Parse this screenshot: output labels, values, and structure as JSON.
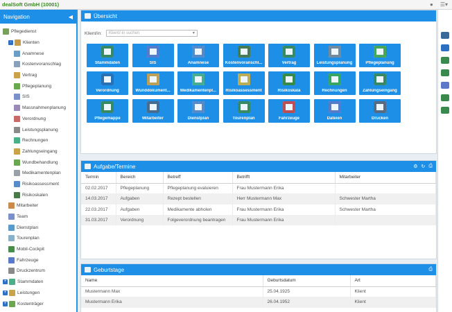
{
  "app": {
    "title": "dealSoft GmbH (10001)",
    "colors": {
      "accent": "#1d8fe6",
      "brand": "#3a8a1e"
    },
    "icons": [
      "user-icon",
      "menu-icon",
      "chevron-down-icon"
    ]
  },
  "sidebar": {
    "title": "Navigation",
    "collapse_icon": "chevron-left-icon",
    "items": [
      {
        "label": "Pflegedienst",
        "level": 0,
        "expander": "",
        "icon": "group-icon",
        "color": "#7a9f5a"
      },
      {
        "label": "Klienten",
        "level": 1,
        "expander": "-",
        "icon": "people-icon",
        "color": "#c79a4a"
      },
      {
        "label": "Anamnese",
        "level": 2,
        "expander": "",
        "icon": "notes-icon",
        "color": "#6a9ec9"
      },
      {
        "label": "Kostenvoranschlag",
        "level": 2,
        "expander": "",
        "icon": "document-icon",
        "color": "#8aa0b8"
      },
      {
        "label": "Vertrag",
        "level": 2,
        "expander": "",
        "icon": "contract-icon",
        "color": "#c9a24a"
      },
      {
        "label": "Pflegeplanung",
        "level": 2,
        "expander": "",
        "icon": "plan-icon",
        "color": "#6aa84f"
      },
      {
        "label": "SIS",
        "level": 2,
        "expander": "",
        "icon": "sis-icon",
        "color": "#7b8fc9"
      },
      {
        "label": "Massnahmenplanung",
        "level": 2,
        "expander": "",
        "icon": "measures-icon",
        "color": "#9b8ab8"
      },
      {
        "label": "Verordnung",
        "level": 2,
        "expander": "",
        "icon": "prescription-icon",
        "color": "#c96a6a"
      },
      {
        "label": "Leistungsplanung",
        "level": 2,
        "expander": "",
        "icon": "service-icon",
        "color": "#8a8a8a"
      },
      {
        "label": "Rechnungen",
        "level": 2,
        "expander": "",
        "icon": "invoice-icon",
        "color": "#4ab08a"
      },
      {
        "label": "Zahlungseingang",
        "level": 2,
        "expander": "",
        "icon": "payment-icon",
        "color": "#c9a24a"
      },
      {
        "label": "Wundbehandlung",
        "level": 2,
        "expander": "",
        "icon": "wound-icon",
        "color": "#6aa84f"
      },
      {
        "label": "Medikamentenplan",
        "level": 2,
        "expander": "",
        "icon": "medication-icon",
        "color": "#9aa0a8"
      },
      {
        "label": "Risikoassessment",
        "level": 2,
        "expander": "",
        "icon": "risk-icon",
        "color": "#5a8ac9"
      },
      {
        "label": "Risikoskalen",
        "level": 2,
        "expander": "",
        "icon": "scale-icon",
        "color": "#4a7a4a"
      },
      {
        "label": "Mitarbeiter",
        "level": 1,
        "expander": "",
        "icon": "staff-icon",
        "color": "#c98a4a"
      },
      {
        "label": "Team",
        "level": 1,
        "expander": "",
        "icon": "team-icon",
        "color": "#7b8fc9"
      },
      {
        "label": "Dienstplan",
        "level": 1,
        "expander": "",
        "icon": "schedule-icon",
        "color": "#5a9ac9"
      },
      {
        "label": "Tourenplan",
        "level": 1,
        "expander": "",
        "icon": "route-icon",
        "color": "#8ab0c9"
      },
      {
        "label": "Mobil-Cockpit",
        "level": 1,
        "expander": "",
        "icon": "mobile-icon",
        "color": "#4a8a4a"
      },
      {
        "label": "Fahrzeuge",
        "level": 1,
        "expander": "",
        "icon": "car-icon",
        "color": "#5a7ac9"
      },
      {
        "label": "Druckzentrum",
        "level": 1,
        "expander": "",
        "icon": "printer-icon",
        "color": "#8a8a8a"
      },
      {
        "label": "Stammdaten",
        "level": 0,
        "expander": "+",
        "icon": "masterdata-icon",
        "color": "#4ab08a"
      },
      {
        "label": "Leistungen",
        "level": 0,
        "expander": "+",
        "icon": "services-icon",
        "color": "#c9a24a"
      },
      {
        "label": "Kostenträger",
        "level": 0,
        "expander": "+",
        "icon": "payer-icon",
        "color": "#6aa84f"
      }
    ]
  },
  "overview": {
    "title": "Übersicht",
    "client_label": "Klient/in:",
    "client_placeholder": "Klient/-in suchen",
    "tiles": [
      {
        "label": "Stammdaten",
        "icon": "id-card-icon",
        "color": "#3a8a5a"
      },
      {
        "label": "SIS",
        "icon": "sis-document-icon",
        "color": "#5a7ac9"
      },
      {
        "label": "Anamnese",
        "icon": "anamnesis-icon",
        "color": "#5a8ac9"
      },
      {
        "label": "Kostenvoranschl...",
        "icon": "calculator-icon",
        "color": "#4a7a4a"
      },
      {
        "label": "Vertrag",
        "icon": "contract-pen-icon",
        "color": "#3a8a5a"
      },
      {
        "label": "Leistungsplanung",
        "icon": "checklist-icon",
        "color": "#7a8a9a"
      },
      {
        "label": "Pflegeplanung",
        "icon": "care-plan-icon",
        "color": "#4aa84f"
      },
      {
        "label": "Verordnung",
        "icon": "stethoscope-icon",
        "color": "#2a6fb0"
      },
      {
        "label": "Wunddokument...",
        "icon": "bandage-icon",
        "color": "#c9a24a"
      },
      {
        "label": "Medikamentenpl...",
        "icon": "pills-icon",
        "color": "#4ab08a"
      },
      {
        "label": "Risikoassessment",
        "icon": "warning-icon",
        "color": "#c9b04a"
      },
      {
        "label": "Risikoskala",
        "icon": "risk-scale-icon",
        "color": "#3a8a3a"
      },
      {
        "label": "Rechnungen",
        "icon": "euro-invoice-icon",
        "color": "#3aa85a"
      },
      {
        "label": "Zahlungseingang",
        "icon": "euro-coins-icon",
        "color": "#3a8a5a"
      },
      {
        "label": "Pflegemappe",
        "icon": "folder-icon",
        "color": "#3a8a5a"
      },
      {
        "label": "Mitarbeiter",
        "icon": "nurse-icon",
        "color": "#4a6a8a"
      },
      {
        "label": "Dienstplan",
        "icon": "calendar-icon",
        "color": "#5a8ac9"
      },
      {
        "label": "Tourenplan",
        "icon": "tour-map-icon",
        "color": "#3a8a5a"
      },
      {
        "label": "Fahrzeuge",
        "icon": "vehicle-icon",
        "color": "#c94a4a"
      },
      {
        "label": "Dateien",
        "icon": "files-icon",
        "color": "#5a7ac9"
      },
      {
        "label": "Drucken",
        "icon": "print-icon",
        "color": "#5a6a7a"
      }
    ]
  },
  "tasks": {
    "title": "Aufgabe/Termine",
    "actions": [
      "settings-icon",
      "refresh-icon",
      "print-icon"
    ],
    "columns": [
      "Termin",
      "Bereich",
      "Betreff",
      "Betrifft",
      "Mitarbeiter"
    ],
    "rows": [
      [
        "02.02.2017",
        "Pflegeplanung",
        "Pflegeplanung evaluieren",
        "Frau Mustermann Erika",
        ""
      ],
      [
        "14.03.2017",
        "Aufgaben",
        "Rezept bestellen",
        "Herr Mustermann Max",
        "Schwester Martha"
      ],
      [
        "22.03.2017",
        "Aufgaben",
        "Medikamente abholen",
        "Frau Mustermann Erika",
        "Schwester Martha"
      ],
      [
        "31.03.2017",
        "Verordnung",
        "Folgeverordnung beantragen",
        "Frau Mustermann Erika",
        ""
      ]
    ]
  },
  "birthdays": {
    "title": "Geburtstage",
    "actions": [
      "print-icon"
    ],
    "columns": [
      "Name",
      "Geburtsdatum",
      "Art"
    ],
    "rows": [
      [
        "Mustermann Max",
        "25.04.1925",
        "Klient"
      ],
      [
        "Mustermann Erika",
        "26.04.1952",
        "Klient"
      ]
    ]
  },
  "rightbar": {
    "icons": [
      "person-icon",
      "notes-icon",
      "contacts-icon",
      "mail-icon",
      "chat-icon",
      "folder-icon",
      "calendar-icon"
    ]
  }
}
